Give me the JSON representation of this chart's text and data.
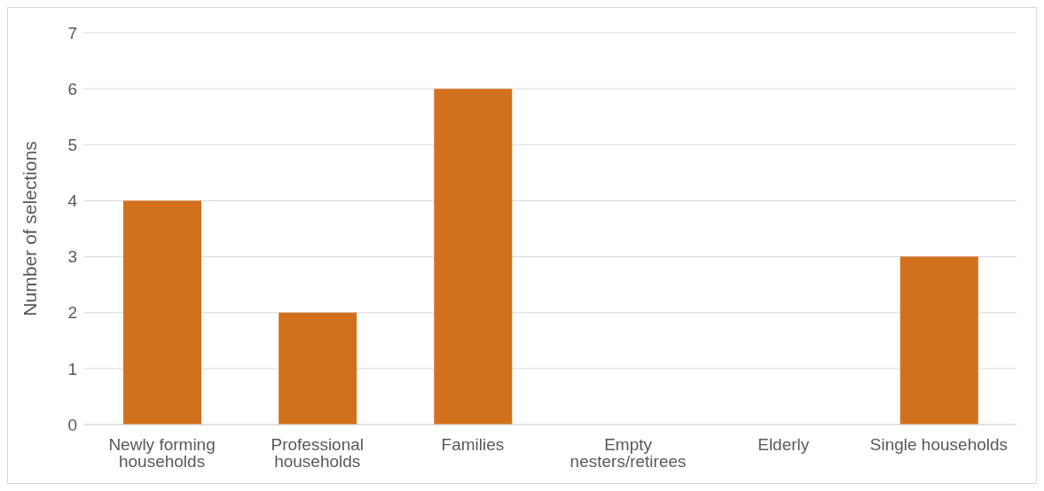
{
  "chart_data": {
    "type": "bar",
    "ylabel": "Number of selections",
    "categories": [
      "Newly forming households",
      "Professional households",
      "Families",
      "Empty nesters/retirees",
      "Elderly",
      "Single households"
    ],
    "values": [
      4,
      2,
      6,
      0,
      0,
      3
    ],
    "color": "#d2711d",
    "ylim": [
      0,
      7
    ],
    "yticks": [
      0,
      1,
      2,
      3,
      4,
      5,
      6,
      7
    ],
    "grid": "y"
  }
}
